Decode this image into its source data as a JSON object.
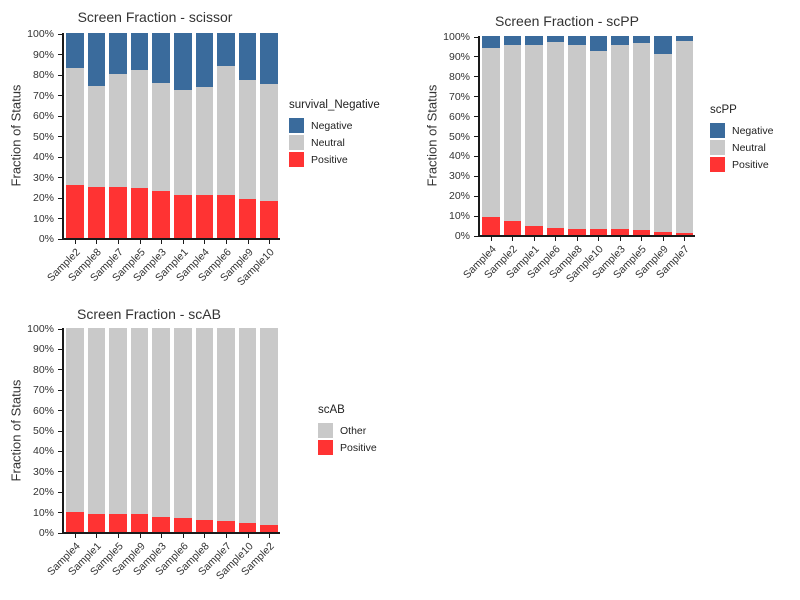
{
  "chart_data": [
    {
      "type": "bar",
      "stacked": true,
      "title": "Screen Fraction - scissor",
      "xlabel": "",
      "ylabel": "Fraction of Status",
      "ylim": [
        0,
        100
      ],
      "grid": false,
      "legend_position": "right",
      "x_tick_rotation": 45,
      "y_ticks": [
        "0%",
        "10%",
        "20%",
        "30%",
        "40%",
        "50%",
        "60%",
        "70%",
        "80%",
        "90%",
        "100%"
      ],
      "categories": [
        "Sample2",
        "Sample8",
        "Sample7",
        "Sample5",
        "Sample3",
        "Sample1",
        "Sample4",
        "Sample6",
        "Sample9",
        "Sample10"
      ],
      "series": [
        {
          "name": "Positive",
          "color": "#FF3333",
          "values": [
            26,
            25,
            25,
            24.5,
            23,
            21,
            21,
            21,
            19,
            18
          ]
        },
        {
          "name": "Neutral",
          "color": "#C9C9C9",
          "values": [
            57,
            49,
            55,
            57.5,
            52.5,
            51,
            52.5,
            63,
            58,
            57
          ]
        },
        {
          "name": "Negative",
          "color": "#3A6B9C",
          "values": [
            17,
            26,
            20,
            18,
            24.5,
            28,
            26.5,
            16,
            23,
            25
          ]
        }
      ],
      "legend": {
        "title": "survival_Negative",
        "entries": [
          {
            "label": "Negative",
            "color": "#3A6B9C"
          },
          {
            "label": "Neutral",
            "color": "#C9C9C9"
          },
          {
            "label": "Positive",
            "color": "#FF3333"
          }
        ]
      }
    },
    {
      "type": "bar",
      "stacked": true,
      "title": "Screen Fraction - scPP",
      "xlabel": "",
      "ylabel": "Fraction of Status",
      "ylim": [
        0,
        100
      ],
      "grid": false,
      "legend_position": "right",
      "x_tick_rotation": 45,
      "y_ticks": [
        "0%",
        "10%",
        "20%",
        "30%",
        "40%",
        "50%",
        "60%",
        "70%",
        "80%",
        "90%",
        "100%"
      ],
      "categories": [
        "Sample4",
        "Sample2",
        "Sample1",
        "Sample6",
        "Sample8",
        "Sample10",
        "Sample3",
        "Sample5",
        "Sample9",
        "Sample7"
      ],
      "series": [
        {
          "name": "Positive",
          "color": "#FF3333",
          "values": [
            9,
            7,
            4.5,
            3.5,
            3,
            3,
            3,
            2.5,
            1.5,
            1
          ]
        },
        {
          "name": "Neutral",
          "color": "#C9C9C9",
          "values": [
            85,
            88.5,
            91,
            93.5,
            92.5,
            89.5,
            92.5,
            94,
            89.5,
            96.5
          ]
        },
        {
          "name": "Negative",
          "color": "#3A6B9C",
          "values": [
            6,
            4.5,
            4.5,
            3,
            4.5,
            7.5,
            4.5,
            3.5,
            9,
            2.5
          ]
        }
      ],
      "legend": {
        "title": "scPP",
        "entries": [
          {
            "label": "Negative",
            "color": "#3A6B9C"
          },
          {
            "label": "Neutral",
            "color": "#C9C9C9"
          },
          {
            "label": "Positive",
            "color": "#FF3333"
          }
        ]
      }
    },
    {
      "type": "bar",
      "stacked": true,
      "title": "Screen Fraction - scAB",
      "xlabel": "",
      "ylabel": "Fraction of Status",
      "ylim": [
        0,
        100
      ],
      "grid": false,
      "legend_position": "right",
      "x_tick_rotation": 45,
      "y_ticks": [
        "0%",
        "10%",
        "20%",
        "30%",
        "40%",
        "50%",
        "60%",
        "70%",
        "80%",
        "90%",
        "100%"
      ],
      "categories": [
        "Sample4",
        "Sample1",
        "Sample5",
        "Sample9",
        "Sample3",
        "Sample6",
        "Sample8",
        "Sample7",
        "Sample10",
        "Sample2"
      ],
      "series": [
        {
          "name": "Positive",
          "color": "#FF3333",
          "values": [
            10,
            9,
            9,
            9,
            7.5,
            7,
            6,
            5.5,
            4.5,
            3.5
          ]
        },
        {
          "name": "Other",
          "color": "#C9C9C9",
          "values": [
            90,
            91,
            91,
            91,
            92.5,
            93,
            94,
            94.5,
            95.5,
            96.5
          ]
        }
      ],
      "legend": {
        "title": "scAB",
        "entries": [
          {
            "label": "Other",
            "color": "#C9C9C9"
          },
          {
            "label": "Positive",
            "color": "#FF3333"
          }
        ]
      }
    }
  ]
}
